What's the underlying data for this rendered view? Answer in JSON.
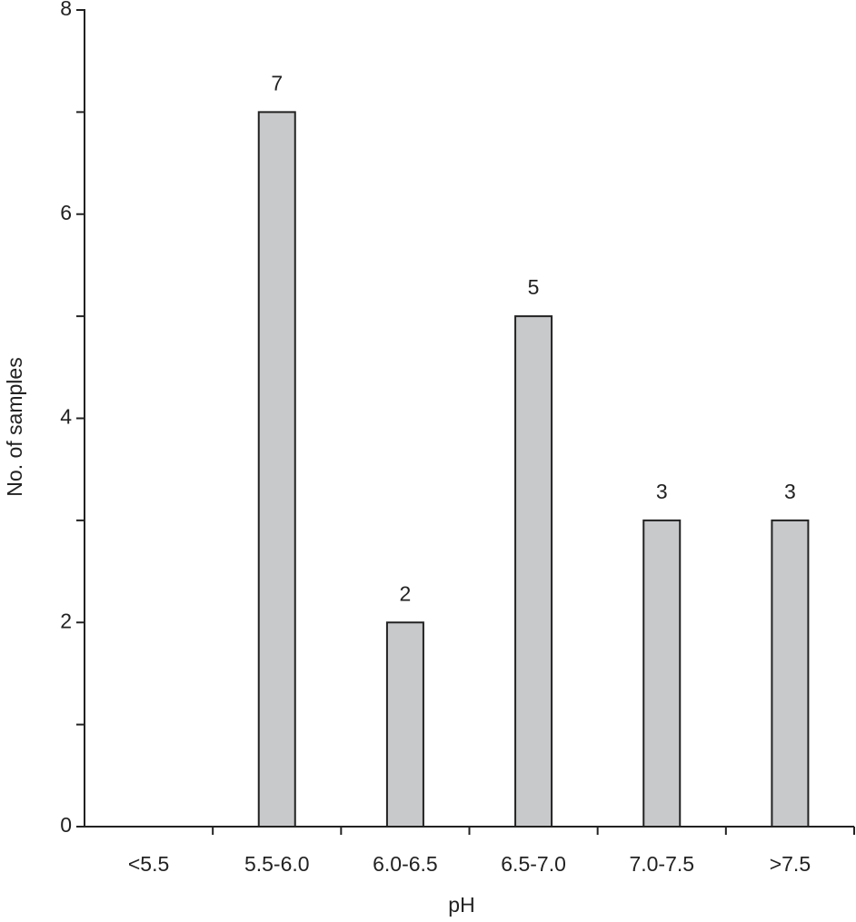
{
  "chart_data": {
    "type": "bar",
    "x_label": "pH",
    "y_label": "No. of samples",
    "categories": [
      "<5.5",
      "5.5-6.0",
      "6.0-6.5",
      "6.5-7.0",
      "7.0-7.5",
      ">7.5"
    ],
    "values": [
      0,
      7,
      2,
      5,
      3,
      3
    ],
    "color": "#c8c9cb",
    "ylim": [
      0,
      8
    ],
    "yticks": [
      0,
      2,
      4,
      6,
      8
    ]
  }
}
